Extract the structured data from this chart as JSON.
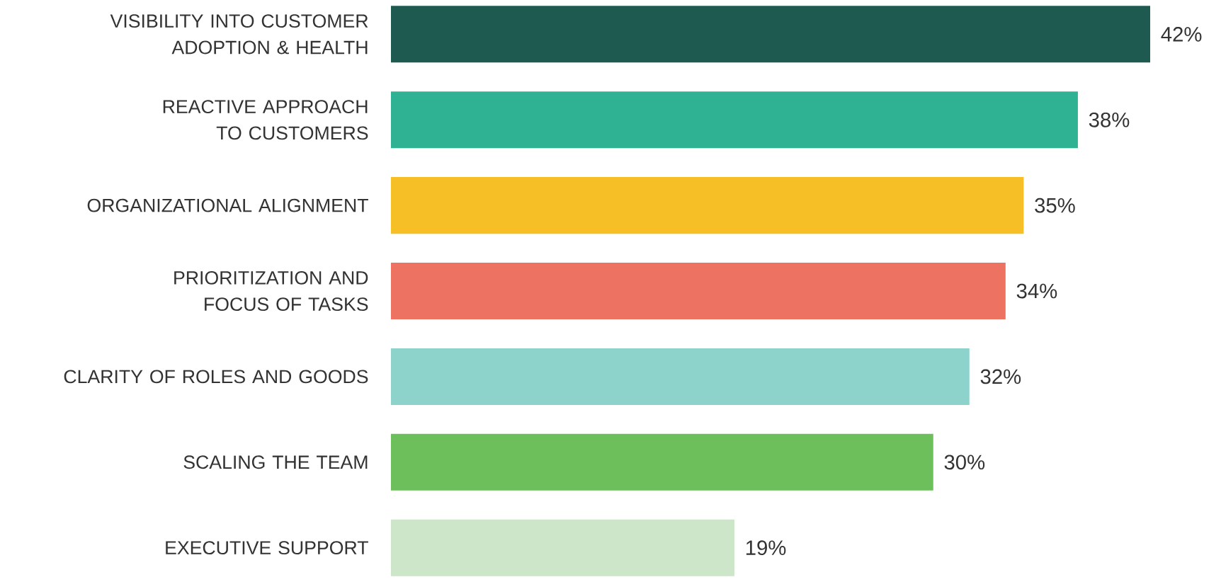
{
  "chart_data": {
    "type": "bar",
    "orientation": "horizontal",
    "categories": [
      "VISIBILITY INTO CUSTOMER ADOPTION & HEALTH",
      "REACTIVE APPROACH TO CUSTOMERS",
      "ORGANIZATIONAL ALIGNMENT",
      "PRIORITIZATION AND FOCUS OF TASKS",
      "CLARITY OF ROLES AND GOODS",
      "SCALING THE TEAM",
      "EXECUTIVE SUPPORT"
    ],
    "values": [
      42,
      38,
      35,
      34,
      32,
      30,
      19
    ],
    "value_labels": [
      "42%",
      "38%",
      "35%",
      "34%",
      "32%",
      "30%",
      "19%"
    ],
    "colors": [
      "#1e5a4f",
      "#2fb194",
      "#f6bf26",
      "#ee7262",
      "#8dd3cc",
      "#6dbf5b",
      "#cde6c9"
    ]
  }
}
